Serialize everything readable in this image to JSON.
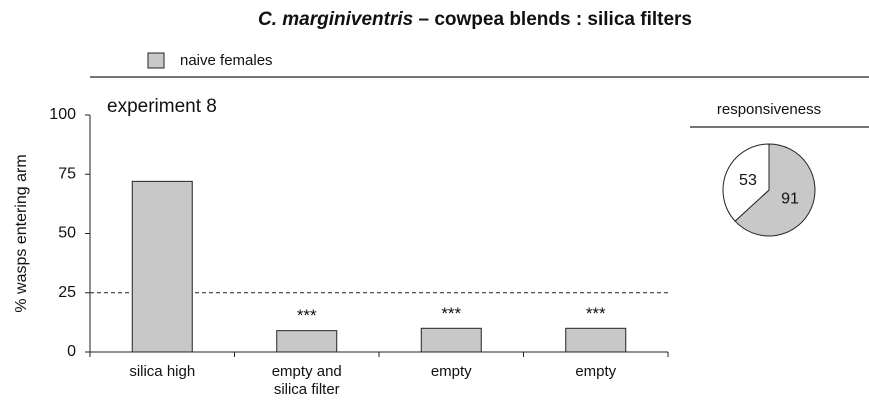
{
  "title": {
    "species": "C. marginiventris",
    "rest": "– cowpea blends : silica filters"
  },
  "chart_data": [
    {
      "type": "bar",
      "annotation": "experiment 8",
      "ylabel": "% wasps entering arm",
      "categories": [
        "silica high",
        "empty and silica filter",
        "empty",
        "empty"
      ],
      "series": [
        {
          "name": "naive females",
          "color": "#c8c8c8",
          "values": [
            72,
            9,
            10,
            10
          ]
        }
      ],
      "significance": [
        null,
        "***",
        "***",
        "***"
      ],
      "reference_line": 25,
      "ylim": [
        0,
        100
      ],
      "yticks": [
        0,
        25,
        50,
        75,
        100
      ]
    },
    {
      "type": "pie",
      "title": "responsiveness",
      "values": [
        91,
        53
      ],
      "colors": [
        "#c8c8c8",
        "#ffffff"
      ]
    }
  ]
}
